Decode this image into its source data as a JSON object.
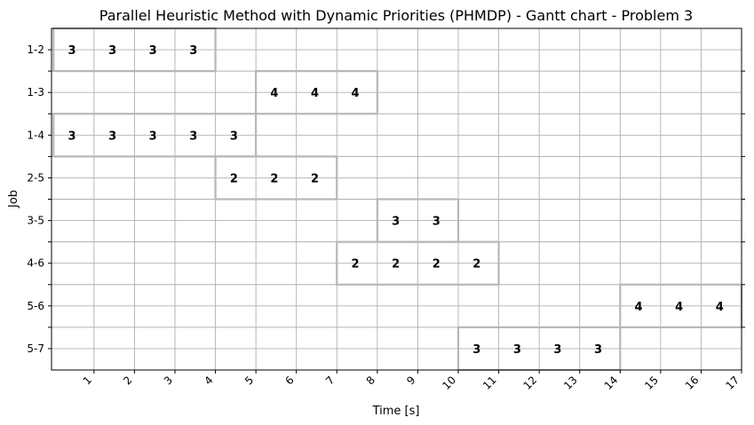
{
  "chart_data": {
    "type": "gantt",
    "title": "Parallel Heuristic Method with Dynamic Priorities (PHMDP) - Gantt chart - Problem 3",
    "xlabel": "Time [s]",
    "ylabel": "Job",
    "xlim": [
      -0.05,
      17
    ],
    "x_ticks": [
      1,
      2,
      3,
      4,
      5,
      6,
      7,
      8,
      9,
      10,
      11,
      12,
      13,
      14,
      15,
      16,
      17
    ],
    "jobs": [
      "1-2",
      "1-3",
      "1-4",
      "2-5",
      "3-5",
      "4-6",
      "5-6",
      "5-7"
    ],
    "grid": true,
    "bars": [
      {
        "job": "1-2",
        "start": 0,
        "end": 4,
        "labels": [
          "3",
          "3",
          "3",
          "3"
        ]
      },
      {
        "job": "1-3",
        "start": 5,
        "end": 8,
        "labels": [
          "4",
          "4",
          "4"
        ]
      },
      {
        "job": "1-4",
        "start": 0,
        "end": 5,
        "labels": [
          "3",
          "3",
          "3",
          "3",
          "3"
        ]
      },
      {
        "job": "2-5",
        "start": 4,
        "end": 7,
        "labels": [
          "2",
          "2",
          "2"
        ]
      },
      {
        "job": "3-5",
        "start": 8,
        "end": 10,
        "labels": [
          "3",
          "3"
        ]
      },
      {
        "job": "4-6",
        "start": 7,
        "end": 11,
        "labels": [
          "2",
          "2",
          "2",
          "2"
        ]
      },
      {
        "job": "5-6",
        "start": 14,
        "end": 17,
        "labels": [
          "4",
          "4",
          "4"
        ]
      },
      {
        "job": "5-7",
        "start": 10,
        "end": 14,
        "labels": [
          "3",
          "3",
          "3",
          "3"
        ]
      }
    ]
  }
}
